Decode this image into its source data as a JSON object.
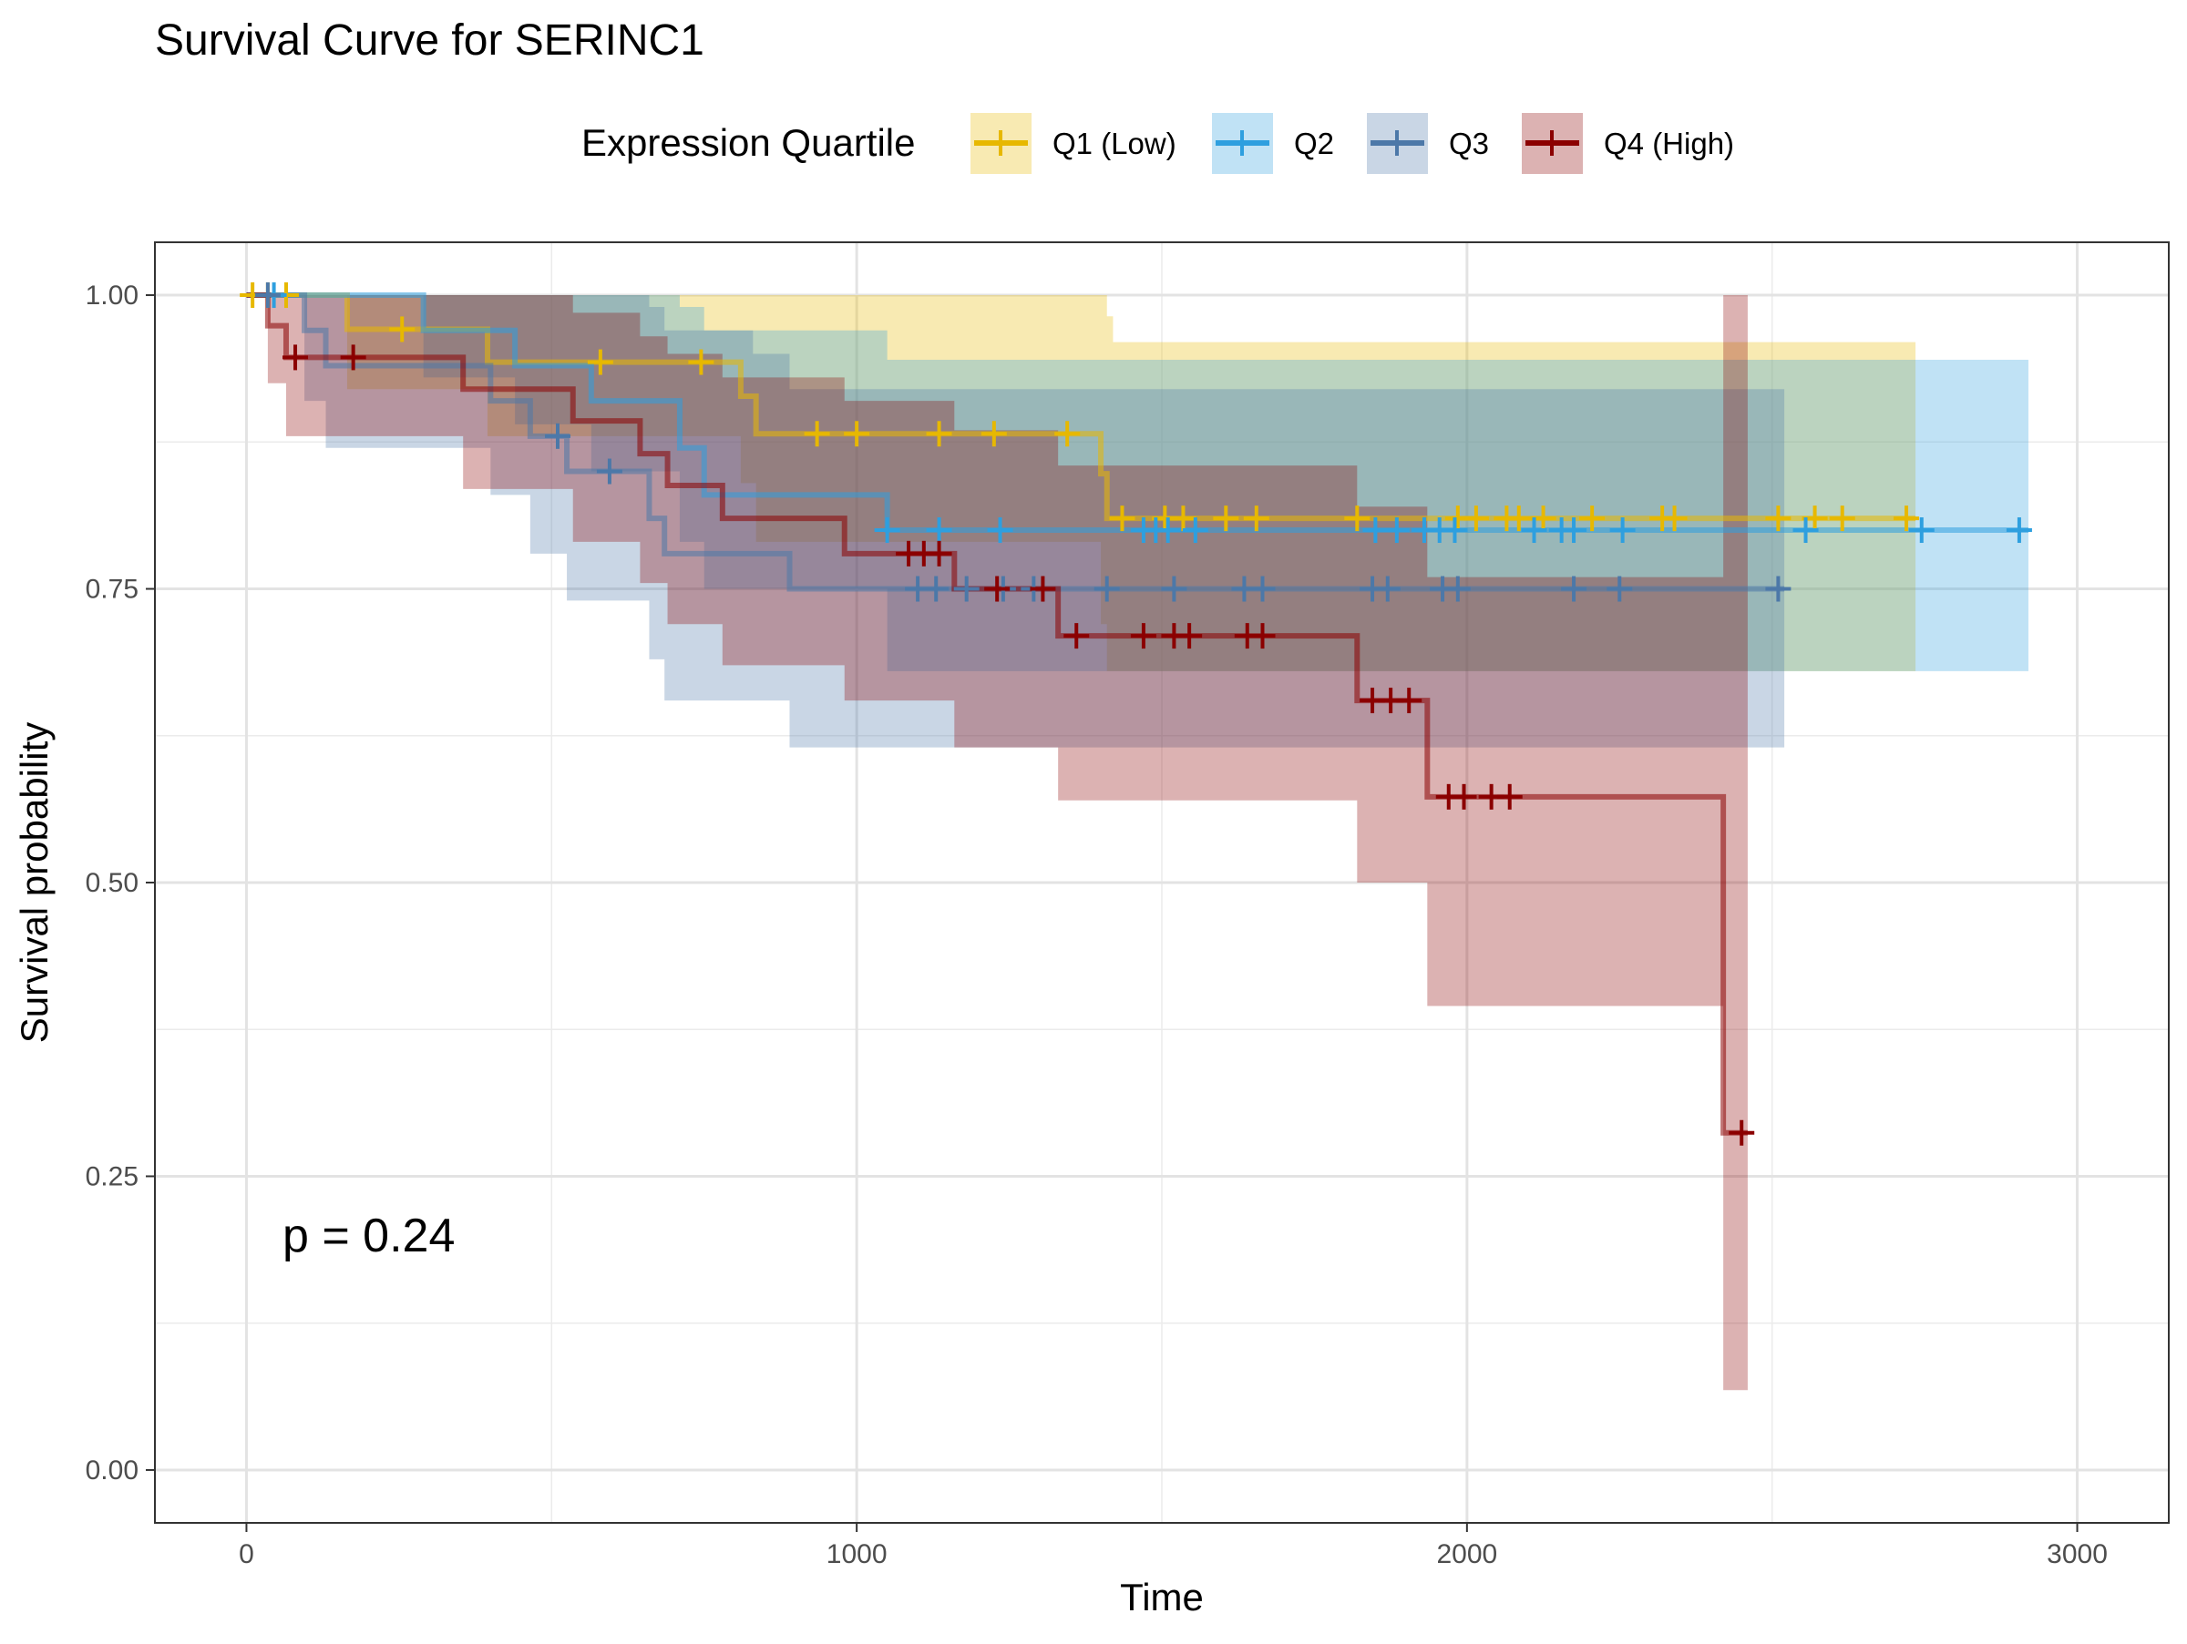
{
  "chart_data": {
    "type": "line",
    "subtype": "kaplan-meier",
    "title": "Survival Curve for SERINC1",
    "xlabel": "Time",
    "ylabel": "Survival probability",
    "xlim": [
      -150,
      3150
    ],
    "ylim": [
      -0.045,
      1.045
    ],
    "xticks": [
      0,
      1000,
      2000,
      3000
    ],
    "yticks": [
      0,
      0.25,
      0.5,
      0.75,
      1.0
    ],
    "ytick_labels": [
      "0.00",
      "0.25",
      "0.50",
      "0.75",
      "1.00"
    ],
    "grid": true,
    "legend": {
      "title": "Expression Quartile",
      "placement": "top"
    },
    "annotation": "p = 0.24",
    "series": [
      {
        "name": "Q1 (Low)",
        "color": "#E7B800",
        "steps": [
          [
            0,
            1.0
          ],
          [
            165,
            0.971
          ],
          [
            395,
            0.943
          ],
          [
            810,
            0.914
          ],
          [
            835,
            0.882
          ],
          [
            1400,
            0.848
          ],
          [
            1410,
            0.81
          ],
          [
            2735,
            0.81
          ]
        ],
        "upper": [
          [
            0,
            1.0
          ],
          [
            1400,
            1.0
          ],
          [
            1410,
            0.982
          ],
          [
            1420,
            0.96
          ],
          [
            2735,
            0.96
          ]
        ],
        "lower": [
          [
            0,
            1.0
          ],
          [
            165,
            0.92
          ],
          [
            395,
            0.88
          ],
          [
            810,
            0.84
          ],
          [
            835,
            0.79
          ],
          [
            1400,
            0.72
          ],
          [
            1410,
            0.68
          ],
          [
            2735,
            0.68
          ]
        ],
        "censored": [
          [
            10,
            1.0
          ],
          [
            35,
            1.0
          ],
          [
            65,
            1.0
          ],
          [
            255,
            0.971
          ],
          [
            580,
            0.943
          ],
          [
            745,
            0.943
          ],
          [
            935,
            0.882
          ],
          [
            1000,
            0.882
          ],
          [
            1135,
            0.882
          ],
          [
            1225,
            0.882
          ],
          [
            1345,
            0.882
          ],
          [
            1435,
            0.81
          ],
          [
            1505,
            0.81
          ],
          [
            1535,
            0.81
          ],
          [
            1605,
            0.81
          ],
          [
            1655,
            0.81
          ],
          [
            1820,
            0.81
          ],
          [
            1985,
            0.81
          ],
          [
            2015,
            0.81
          ],
          [
            2065,
            0.81
          ],
          [
            2085,
            0.81
          ],
          [
            2125,
            0.81
          ],
          [
            2205,
            0.81
          ],
          [
            2320,
            0.81
          ],
          [
            2340,
            0.81
          ],
          [
            2510,
            0.81
          ],
          [
            2570,
            0.81
          ],
          [
            2615,
            0.81
          ],
          [
            2720,
            0.81
          ]
        ]
      },
      {
        "name": "Q2",
        "color": "#2E9FDF",
        "steps": [
          [
            0,
            1.0
          ],
          [
            290,
            0.97
          ],
          [
            440,
            0.94
          ],
          [
            565,
            0.91
          ],
          [
            710,
            0.87
          ],
          [
            750,
            0.83
          ],
          [
            1050,
            0.8
          ],
          [
            2920,
            0.8
          ]
        ],
        "upper": [
          [
            0,
            1.0
          ],
          [
            565,
            1.0
          ],
          [
            710,
            0.99
          ],
          [
            750,
            0.97
          ],
          [
            1050,
            0.945
          ],
          [
            2920,
            0.945
          ]
        ],
        "lower": [
          [
            0,
            1.0
          ],
          [
            290,
            0.93
          ],
          [
            440,
            0.89
          ],
          [
            565,
            0.85
          ],
          [
            710,
            0.79
          ],
          [
            750,
            0.75
          ],
          [
            1050,
            0.68
          ],
          [
            2920,
            0.68
          ]
        ],
        "censored": [
          [
            45,
            1.0
          ],
          [
            1050,
            0.8
          ],
          [
            1135,
            0.8
          ],
          [
            1235,
            0.8
          ],
          [
            1470,
            0.8
          ],
          [
            1490,
            0.8
          ],
          [
            1510,
            0.8
          ],
          [
            1555,
            0.8
          ],
          [
            1850,
            0.8
          ],
          [
            1885,
            0.8
          ],
          [
            1930,
            0.8
          ],
          [
            1955,
            0.8
          ],
          [
            1980,
            0.8
          ],
          [
            2110,
            0.8
          ],
          [
            2155,
            0.8
          ],
          [
            2175,
            0.8
          ],
          [
            2255,
            0.8
          ],
          [
            2555,
            0.8
          ],
          [
            2745,
            0.8
          ],
          [
            2905,
            0.8
          ]
        ]
      },
      {
        "name": "Q3",
        "color": "#4C78A8",
        "steps": [
          [
            0,
            1.0
          ],
          [
            95,
            0.97
          ],
          [
            130,
            0.94
          ],
          [
            400,
            0.91
          ],
          [
            465,
            0.88
          ],
          [
            525,
            0.85
          ],
          [
            660,
            0.81
          ],
          [
            685,
            0.78
          ],
          [
            830,
            0.78
          ],
          [
            890,
            0.75
          ],
          [
            2520,
            0.75
          ]
        ],
        "upper": [
          [
            0,
            1.0
          ],
          [
            525,
            1.0
          ],
          [
            660,
            0.99
          ],
          [
            685,
            0.97
          ],
          [
            830,
            0.95
          ],
          [
            890,
            0.92
          ],
          [
            2520,
            0.92
          ]
        ],
        "lower": [
          [
            0,
            1.0
          ],
          [
            95,
            0.91
          ],
          [
            130,
            0.87
          ],
          [
            400,
            0.83
          ],
          [
            465,
            0.78
          ],
          [
            525,
            0.74
          ],
          [
            660,
            0.69
          ],
          [
            685,
            0.655
          ],
          [
            830,
            0.655
          ],
          [
            890,
            0.615
          ],
          [
            2520,
            0.615
          ]
        ],
        "censored": [
          [
            35,
            1.0
          ],
          [
            510,
            0.88
          ],
          [
            595,
            0.85
          ],
          [
            1100,
            0.75
          ],
          [
            1130,
            0.75
          ],
          [
            1180,
            0.75
          ],
          [
            1240,
            0.75
          ],
          [
            1290,
            0.75
          ],
          [
            1410,
            0.75
          ],
          [
            1520,
            0.75
          ],
          [
            1635,
            0.75
          ],
          [
            1665,
            0.75
          ],
          [
            1845,
            0.75
          ],
          [
            1870,
            0.75
          ],
          [
            1960,
            0.75
          ],
          [
            1985,
            0.75
          ],
          [
            2175,
            0.75
          ],
          [
            2250,
            0.75
          ],
          [
            2510,
            0.75
          ]
        ]
      },
      {
        "name": "Q4 (High)",
        "color": "#8B0000",
        "steps": [
          [
            0,
            1.0
          ],
          [
            35,
            0.974
          ],
          [
            65,
            0.947
          ],
          [
            355,
            0.92
          ],
          [
            535,
            0.893
          ],
          [
            645,
            0.865
          ],
          [
            690,
            0.838
          ],
          [
            780,
            0.81
          ],
          [
            980,
            0.78
          ],
          [
            1160,
            0.75
          ],
          [
            1330,
            0.71
          ],
          [
            1820,
            0.655
          ],
          [
            1935,
            0.573
          ],
          [
            2420,
            0.287
          ],
          [
            2460,
            0.287
          ]
        ],
        "upper": [
          [
            0,
            1.0
          ],
          [
            355,
            1.0
          ],
          [
            535,
            0.985
          ],
          [
            645,
            0.965
          ],
          [
            690,
            0.95
          ],
          [
            780,
            0.93
          ],
          [
            980,
            0.91
          ],
          [
            1160,
            0.885
          ],
          [
            1330,
            0.855
          ],
          [
            1820,
            0.82
          ],
          [
            1935,
            0.76
          ],
          [
            2420,
            1.0
          ],
          [
            2460,
            1.0
          ]
        ],
        "lower": [
          [
            0,
            1.0
          ],
          [
            35,
            0.925
          ],
          [
            65,
            0.88
          ],
          [
            355,
            0.835
          ],
          [
            535,
            0.79
          ],
          [
            645,
            0.755
          ],
          [
            690,
            0.72
          ],
          [
            780,
            0.685
          ],
          [
            980,
            0.655
          ],
          [
            1160,
            0.615
          ],
          [
            1330,
            0.57
          ],
          [
            1820,
            0.5
          ],
          [
            1935,
            0.395
          ],
          [
            2420,
            0.068
          ],
          [
            2460,
            0.068
          ]
        ],
        "censored": [
          [
            80,
            0.947
          ],
          [
            175,
            0.947
          ],
          [
            1085,
            0.78
          ],
          [
            1110,
            0.78
          ],
          [
            1135,
            0.78
          ],
          [
            1230,
            0.75
          ],
          [
            1305,
            0.75
          ],
          [
            1360,
            0.71
          ],
          [
            1470,
            0.71
          ],
          [
            1520,
            0.71
          ],
          [
            1545,
            0.71
          ],
          [
            1640,
            0.71
          ],
          [
            1665,
            0.71
          ],
          [
            1845,
            0.655
          ],
          [
            1875,
            0.655
          ],
          [
            1905,
            0.655
          ],
          [
            1970,
            0.573
          ],
          [
            1995,
            0.573
          ],
          [
            2040,
            0.573
          ],
          [
            2070,
            0.573
          ],
          [
            2450,
            0.287
          ]
        ]
      }
    ]
  }
}
